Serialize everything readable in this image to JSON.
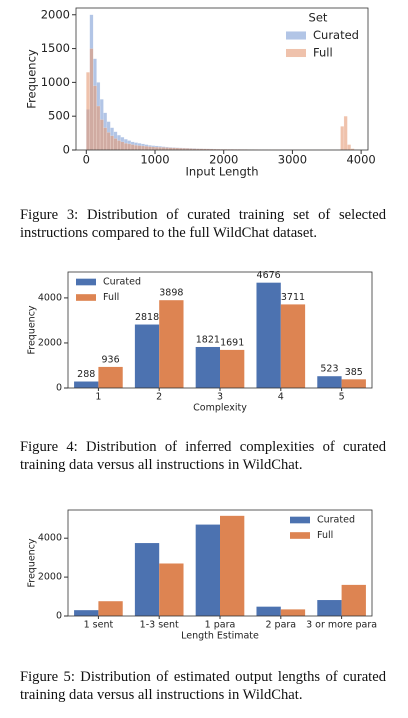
{
  "chart_data": [
    {
      "type": "histogram",
      "x_label": "Input Length",
      "y_label": "Frequency",
      "bins": [
        0,
        50,
        100,
        150,
        200,
        250,
        300,
        350,
        400,
        450,
        500,
        550,
        600,
        650,
        700,
        750,
        800,
        850,
        900,
        950,
        1000,
        1050,
        1100,
        1150,
        1200,
        1250,
        1300,
        1350,
        1400,
        1450,
        1500,
        1550,
        1600,
        1650,
        1700,
        1750,
        1800,
        1850,
        1900,
        1950,
        2000,
        2050,
        2100,
        2150,
        2200,
        2250,
        2300,
        2350,
        2400,
        2450,
        2500,
        2550,
        2600,
        2650,
        2700,
        2750,
        2800,
        2850,
        2900,
        2950,
        3000,
        3050,
        3100,
        3150,
        3200,
        3250,
        3300,
        3350,
        3400,
        3450,
        3500,
        3550,
        3600,
        3650,
        3700,
        3750,
        3800,
        3850,
        3900,
        3950,
        4000
      ],
      "series": [
        {
          "name": "Curated",
          "color": "#7f9ed6",
          "values": [
            600,
            2000,
            1350,
            1000,
            750,
            550,
            420,
            330,
            270,
            220,
            190,
            160,
            140,
            120,
            110,
            100,
            90,
            80,
            70,
            65,
            60,
            55,
            50,
            45,
            40,
            38,
            35,
            32,
            30,
            28,
            26,
            24,
            22,
            20,
            18,
            17,
            16,
            15,
            14,
            13,
            12,
            12,
            11,
            10,
            10,
            9,
            9,
            8,
            8,
            7,
            7,
            7,
            6,
            6,
            5,
            5,
            5,
            4,
            4,
            4,
            4,
            3,
            3,
            3,
            3,
            3,
            3,
            2,
            2,
            2,
            2,
            2,
            2,
            2,
            5,
            5,
            2,
            1,
            1,
            1
          ]
        },
        {
          "name": "Full",
          "color": "#e59a74",
          "values": [
            1150,
            1500,
            950,
            650,
            450,
            330,
            260,
            210,
            170,
            140,
            120,
            100,
            90,
            80,
            70,
            65,
            60,
            55,
            50,
            45,
            42,
            40,
            38,
            36,
            34,
            32,
            30,
            28,
            26,
            24,
            22,
            20,
            19,
            18,
            17,
            16,
            15,
            14,
            13,
            12,
            12,
            11,
            11,
            10,
            10,
            9,
            9,
            8,
            8,
            8,
            7,
            7,
            7,
            6,
            6,
            6,
            5,
            5,
            5,
            5,
            5,
            5,
            4,
            4,
            4,
            4,
            4,
            4,
            4,
            4,
            4,
            4,
            4,
            4,
            350,
            500,
            80,
            20,
            5,
            3
          ]
        }
      ],
      "xlim": [
        -150,
        4100
      ],
      "xticks": [
        0,
        1000,
        2000,
        3000,
        4000
      ],
      "ylim": [
        0,
        2100
      ],
      "yticks": [
        0,
        500,
        1000,
        1500,
        2000
      ],
      "legend": "upper right",
      "legend_title": "Set",
      "opacity": 0.6
    },
    {
      "type": "bar",
      "x_label": "Complexity",
      "y_label": "Frequency",
      "categories": [
        "1",
        "2",
        "3",
        "4",
        "5"
      ],
      "series": [
        {
          "name": "Curated",
          "color": "#4c72b0",
          "values": [
            288,
            2818,
            1821,
            4676,
            523
          ]
        },
        {
          "name": "Full",
          "color": "#dd8452",
          "values": [
            936,
            3898,
            1691,
            3711,
            385
          ]
        }
      ],
      "ylim": [
        0,
        5150
      ],
      "yticks": [
        0,
        2000,
        4000
      ],
      "legend": "upper left",
      "data_labels": true
    },
    {
      "type": "bar",
      "x_label": "Length Estimate",
      "y_label": "Frequency",
      "categories": [
        "1 sent",
        "1-3 sent",
        "1 para",
        "2 para",
        "3 or more para"
      ],
      "series": [
        {
          "name": "Curated",
          "color": "#4c72b0",
          "values": [
            300,
            3750,
            4700,
            480,
            820
          ]
        },
        {
          "name": "Full",
          "color": "#dd8452",
          "values": [
            760,
            2700,
            5150,
            340,
            1600
          ]
        }
      ],
      "ylim": [
        0,
        5450
      ],
      "yticks": [
        0,
        2000,
        4000
      ],
      "legend": "upper right",
      "data_labels": false
    }
  ],
  "captions": [
    "Figure 3: Distribution of curated training set of selected instructions compared to the full WildChat dataset.",
    "Figure 4: Distribution of inferred complexities of curated training data versus all instructions in WildChat.",
    "Figure 5: Distribution of estimated output lengths of curated training data versus all instructions in WildChat."
  ]
}
